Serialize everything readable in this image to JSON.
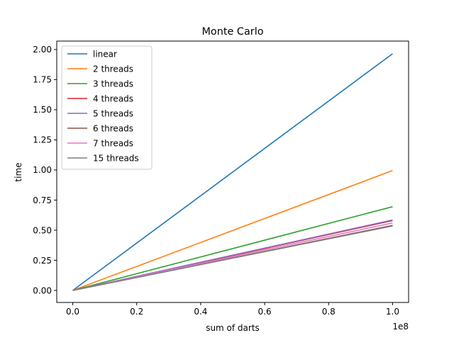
{
  "chart_data": {
    "type": "line",
    "title": "Monte Carlo",
    "xlabel": "sum of darts",
    "ylabel": "time",
    "x_offset_label": "1e8",
    "xlim": [
      -0.05,
      1.05
    ],
    "ylim": [
      -0.1,
      2.07
    ],
    "x_ticks": [
      0.0,
      0.2,
      0.4,
      0.6,
      0.8,
      1.0
    ],
    "x_tick_labels": [
      "0.0",
      "0.2",
      "0.4",
      "0.6",
      "0.8",
      "1.0"
    ],
    "y_ticks": [
      0.0,
      0.25,
      0.5,
      0.75,
      1.0,
      1.25,
      1.5,
      1.75,
      2.0
    ],
    "y_tick_labels": [
      "0.00",
      "0.25",
      "0.50",
      "0.75",
      "1.00",
      "1.25",
      "1.50",
      "1.75",
      "2.00"
    ],
    "grid": false,
    "legend_position": "top-left",
    "x": [
      0.0,
      1.0
    ],
    "series": [
      {
        "name": "linear",
        "color": "#1f77b4",
        "values": [
          0.0,
          1.965
        ]
      },
      {
        "name": "2 threads",
        "color": "#ff7f0e",
        "values": [
          0.0,
          0.995
        ]
      },
      {
        "name": "3 threads",
        "color": "#2ca02c",
        "values": [
          0.0,
          0.695
        ]
      },
      {
        "name": "4 threads",
        "color": "#d62728",
        "values": [
          0.0,
          0.58
        ]
      },
      {
        "name": "5 threads",
        "color": "#9467bd",
        "values": [
          0.0,
          0.585
        ]
      },
      {
        "name": "6 threads",
        "color": "#8c564b",
        "values": [
          0.0,
          0.54
        ]
      },
      {
        "name": "7 threads",
        "color": "#e377c2",
        "values": [
          0.0,
          0.56
        ]
      },
      {
        "name": "15 threads",
        "color": "#7f7f7f",
        "values": [
          0.0,
          0.535
        ]
      }
    ]
  }
}
